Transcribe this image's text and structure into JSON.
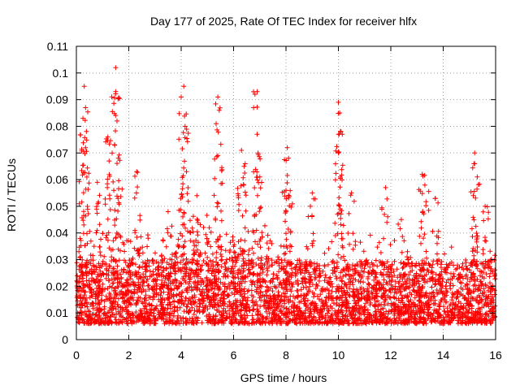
{
  "chart_data": {
    "type": "scatter",
    "title": "Day 177 of 2025, Rate Of TEC Index for receiver hlfx",
    "xlabel": "GPS time / hours",
    "ylabel": "ROTI / TECUs",
    "xlim": [
      0,
      16
    ],
    "ylim": [
      0,
      0.11
    ],
    "x_ticks": [
      0,
      2,
      4,
      6,
      8,
      10,
      12,
      14,
      16
    ],
    "x_tick_labels": [
      "0",
      "2",
      "4",
      "6",
      "8",
      "10",
      "12",
      "14",
      "16"
    ],
    "y_ticks": [
      0,
      0.01,
      0.02,
      0.03,
      0.04,
      0.05,
      0.06,
      0.07,
      0.08,
      0.09,
      0.1,
      0.11
    ],
    "y_tick_labels": [
      "0",
      "0.01",
      "0.02",
      "0.03",
      "0.04",
      "0.05",
      "0.06",
      "0.07",
      "0.08",
      "0.09",
      "0.1",
      "0.11"
    ],
    "grid": true,
    "marker": "+",
    "marker_color": "#ff0000",
    "series": [
      {
        "name": "ROTI",
        "note": "Dense cloud of several thousand points mostly between 0.005 and 0.035 TECU/s; representative peaks listed below",
        "peaks": [
          {
            "x": 0.1,
            "y": 0.033
          },
          {
            "x": 0.25,
            "y": 0.083
          },
          {
            "x": 0.3,
            "y": 0.095
          },
          {
            "x": 0.35,
            "y": 0.087
          },
          {
            "x": 0.35,
            "y": 0.072
          },
          {
            "x": 0.8,
            "y": 0.059
          },
          {
            "x": 1.2,
            "y": 0.076
          },
          {
            "x": 1.25,
            "y": 0.067
          },
          {
            "x": 1.5,
            "y": 0.102
          },
          {
            "x": 1.5,
            "y": 0.093
          },
          {
            "x": 1.55,
            "y": 0.082
          },
          {
            "x": 1.6,
            "y": 0.068
          },
          {
            "x": 2.3,
            "y": 0.063
          },
          {
            "x": 3.5,
            "y": 0.048
          },
          {
            "x": 4.0,
            "y": 0.091
          },
          {
            "x": 4.1,
            "y": 0.095
          },
          {
            "x": 4.15,
            "y": 0.08
          },
          {
            "x": 4.2,
            "y": 0.063
          },
          {
            "x": 4.6,
            "y": 0.054
          },
          {
            "x": 5.4,
            "y": 0.091
          },
          {
            "x": 5.45,
            "y": 0.086
          },
          {
            "x": 5.4,
            "y": 0.069
          },
          {
            "x": 6.3,
            "y": 0.071
          },
          {
            "x": 6.4,
            "y": 0.065
          },
          {
            "x": 6.9,
            "y": 0.093
          },
          {
            "x": 6.9,
            "y": 0.077
          },
          {
            "x": 7.0,
            "y": 0.061
          },
          {
            "x": 8.05,
            "y": 0.072
          },
          {
            "x": 8.1,
            "y": 0.068
          },
          {
            "x": 8.0,
            "y": 0.056
          },
          {
            "x": 9.0,
            "y": 0.055
          },
          {
            "x": 10.0,
            "y": 0.089
          },
          {
            "x": 10.05,
            "y": 0.085
          },
          {
            "x": 10.1,
            "y": 0.078
          },
          {
            "x": 10.0,
            "y": 0.07
          },
          {
            "x": 10.5,
            "y": 0.055
          },
          {
            "x": 11.8,
            "y": 0.057
          },
          {
            "x": 12.4,
            "y": 0.045
          },
          {
            "x": 13.2,
            "y": 0.062
          },
          {
            "x": 13.3,
            "y": 0.058
          },
          {
            "x": 13.7,
            "y": 0.053
          },
          {
            "x": 15.2,
            "y": 0.07
          },
          {
            "x": 15.2,
            "y": 0.066
          },
          {
            "x": 15.3,
            "y": 0.061
          },
          {
            "x": 15.6,
            "y": 0.05
          }
        ]
      }
    ]
  }
}
